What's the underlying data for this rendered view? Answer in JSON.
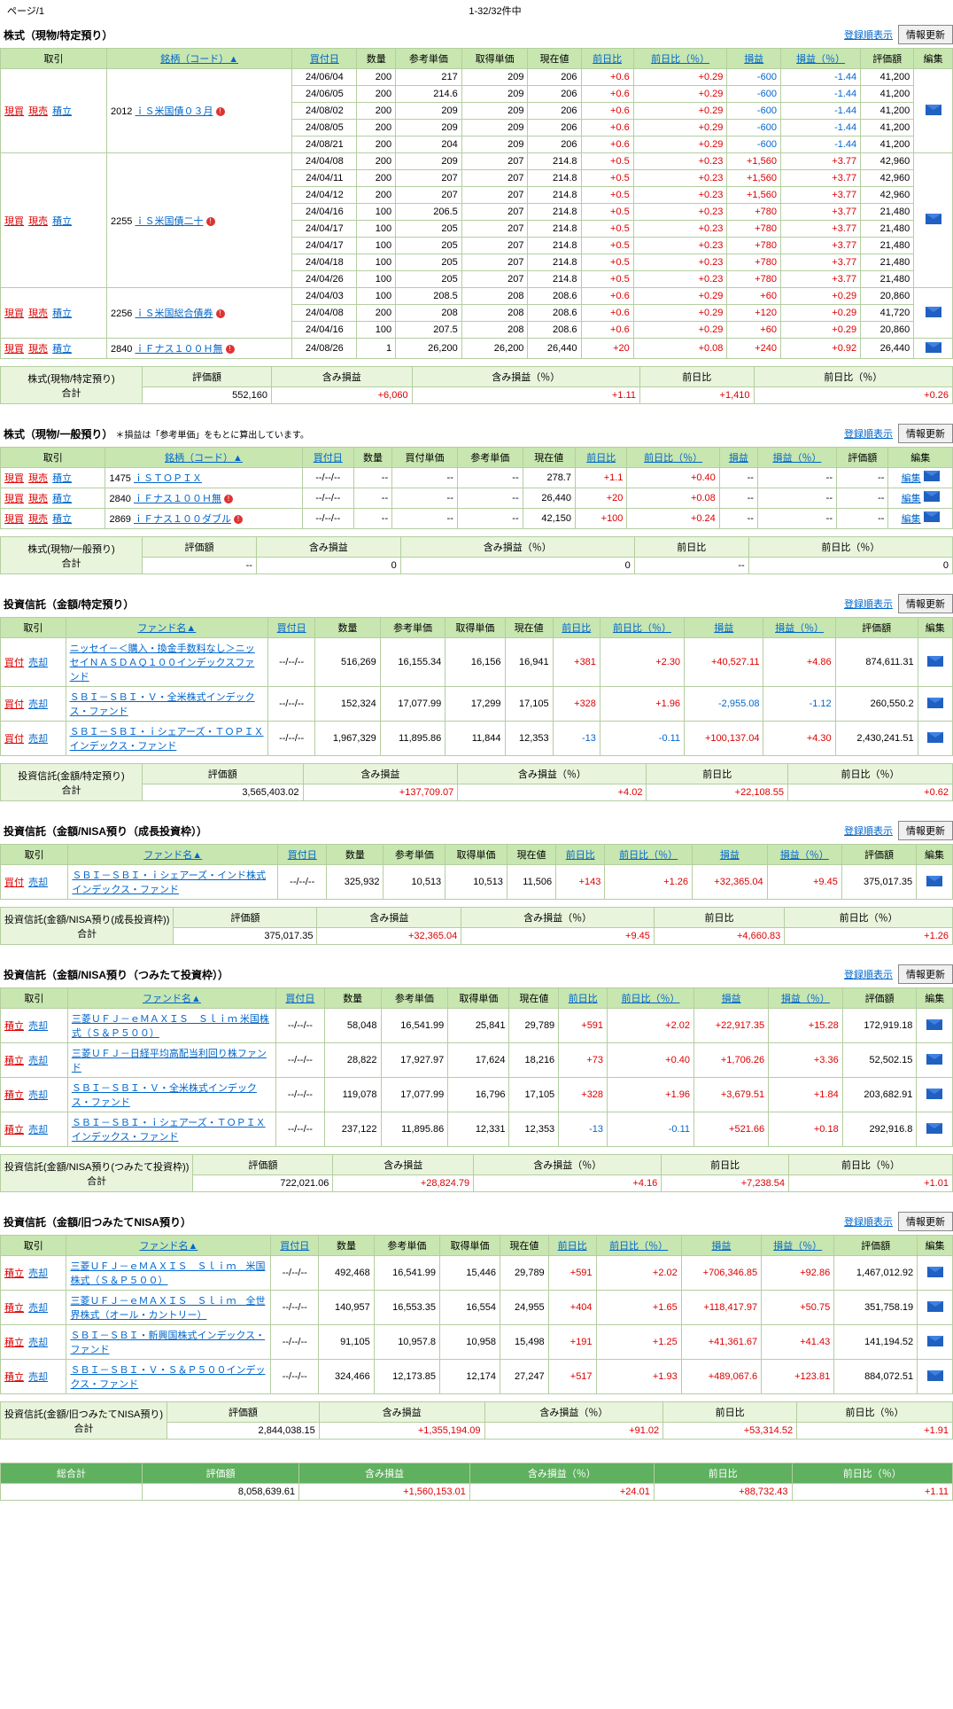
{
  "top": {
    "page_label": "ページ",
    "page_num": "/1",
    "count": "1-32/32件中"
  },
  "common": {
    "reg_order": "登録順表示",
    "info_update": "情報更新",
    "edit": "編集",
    "h_trade": "取引",
    "h_name": "銘柄（コード）▲",
    "h_fund": "ファンド名▲",
    "h_buydate": "買付日",
    "h_qty": "数量",
    "h_refprice": "参考単価",
    "h_buyprice": "買付単価",
    "h_acqprice": "取得単価",
    "h_curval": "現在値",
    "h_prevdiff": "前日比",
    "h_prevpct": "前日比（％）",
    "h_gain": "損益",
    "h_gainpct": "損益（％）",
    "h_eval": "評価額",
    "h_edit": "編集",
    "act_buy": "現買",
    "act_sell": "現売",
    "act_tsumi": "積立",
    "act_kaitsuke": "買付",
    "act_kaitsuke2": "積立",
    "act_baikyaku": "売却",
    "sum_eval": "評価額",
    "sum_gain": "含み損益",
    "sum_gainpct": "含み損益（％）",
    "sum_prev": "前日比",
    "sum_prevpct": "前日比（％）",
    "sum_total": "合計",
    "grand": "総合計"
  },
  "sec1": {
    "title": "株式（現物/特定預り）",
    "groups": [
      {
        "code": "2012",
        "name": "ｉＳ米国債０３月",
        "dot": true,
        "rows": [
          {
            "d": "24/06/04",
            "q": "200",
            "rp": "217",
            "ap": "209",
            "cv": "206",
            "pd": "+0.6",
            "pp": "+0.29",
            "g": "-600",
            "gp": "-1.44",
            "ev": "41,200"
          },
          {
            "d": "24/06/05",
            "q": "200",
            "rp": "214.6",
            "ap": "209",
            "cv": "206",
            "pd": "+0.6",
            "pp": "+0.29",
            "g": "-600",
            "gp": "-1.44",
            "ev": "41,200"
          },
          {
            "d": "24/08/02",
            "q": "200",
            "rp": "209",
            "ap": "209",
            "cv": "206",
            "pd": "+0.6",
            "pp": "+0.29",
            "g": "-600",
            "gp": "-1.44",
            "ev": "41,200"
          },
          {
            "d": "24/08/05",
            "q": "200",
            "rp": "209",
            "ap": "209",
            "cv": "206",
            "pd": "+0.6",
            "pp": "+0.29",
            "g": "-600",
            "gp": "-1.44",
            "ev": "41,200"
          },
          {
            "d": "24/08/21",
            "q": "200",
            "rp": "204",
            "ap": "209",
            "cv": "206",
            "pd": "+0.6",
            "pp": "+0.29",
            "g": "-600",
            "gp": "-1.44",
            "ev": "41,200"
          }
        ]
      },
      {
        "code": "2255",
        "name": "ｉＳ米国債二十",
        "dot": true,
        "rows": [
          {
            "d": "24/04/08",
            "q": "200",
            "rp": "209",
            "ap": "207",
            "cv": "214.8",
            "pd": "+0.5",
            "pp": "+0.23",
            "g": "+1,560",
            "gp": "+3.77",
            "ev": "42,960"
          },
          {
            "d": "24/04/11",
            "q": "200",
            "rp": "207",
            "ap": "207",
            "cv": "214.8",
            "pd": "+0.5",
            "pp": "+0.23",
            "g": "+1,560",
            "gp": "+3.77",
            "ev": "42,960"
          },
          {
            "d": "24/04/12",
            "q": "200",
            "rp": "207",
            "ap": "207",
            "cv": "214.8",
            "pd": "+0.5",
            "pp": "+0.23",
            "g": "+1,560",
            "gp": "+3.77",
            "ev": "42,960"
          },
          {
            "d": "24/04/16",
            "q": "100",
            "rp": "206.5",
            "ap": "207",
            "cv": "214.8",
            "pd": "+0.5",
            "pp": "+0.23",
            "g": "+780",
            "gp": "+3.77",
            "ev": "21,480"
          },
          {
            "d": "24/04/17",
            "q": "100",
            "rp": "205",
            "ap": "207",
            "cv": "214.8",
            "pd": "+0.5",
            "pp": "+0.23",
            "g": "+780",
            "gp": "+3.77",
            "ev": "21,480"
          },
          {
            "d": "24/04/17",
            "q": "100",
            "rp": "205",
            "ap": "207",
            "cv": "214.8",
            "pd": "+0.5",
            "pp": "+0.23",
            "g": "+780",
            "gp": "+3.77",
            "ev": "21,480"
          },
          {
            "d": "24/04/18",
            "q": "100",
            "rp": "205",
            "ap": "207",
            "cv": "214.8",
            "pd": "+0.5",
            "pp": "+0.23",
            "g": "+780",
            "gp": "+3.77",
            "ev": "21,480"
          },
          {
            "d": "24/04/26",
            "q": "100",
            "rp": "205",
            "ap": "207",
            "cv": "214.8",
            "pd": "+0.5",
            "pp": "+0.23",
            "g": "+780",
            "gp": "+3.77",
            "ev": "21,480"
          }
        ]
      },
      {
        "code": "2256",
        "name": "ｉＳ米国総合債券",
        "dot": true,
        "rows": [
          {
            "d": "24/04/03",
            "q": "100",
            "rp": "208.5",
            "ap": "208",
            "cv": "208.6",
            "pd": "+0.6",
            "pp": "+0.29",
            "g": "+60",
            "gp": "+0.29",
            "ev": "20,860"
          },
          {
            "d": "24/04/08",
            "q": "200",
            "rp": "208",
            "ap": "208",
            "cv": "208.6",
            "pd": "+0.6",
            "pp": "+0.29",
            "g": "+120",
            "gp": "+0.29",
            "ev": "41,720"
          },
          {
            "d": "24/04/16",
            "q": "100",
            "rp": "207.5",
            "ap": "208",
            "cv": "208.6",
            "pd": "+0.6",
            "pp": "+0.29",
            "g": "+60",
            "gp": "+0.29",
            "ev": "20,860"
          }
        ]
      },
      {
        "code": "2840",
        "name": "ｉＦナス１００Ｈ無",
        "dot": true,
        "rows": [
          {
            "d": "24/08/26",
            "q": "1",
            "rp": "26,200",
            "ap": "26,200",
            "cv": "26,440",
            "pd": "+20",
            "pp": "+0.08",
            "g": "+240",
            "gp": "+0.92",
            "ev": "26,440"
          }
        ]
      }
    ],
    "sum": {
      "label": "株式(現物/特定預り)",
      "ev": "552,160",
      "g": "+6,060",
      "gp": "+1.11",
      "pd": "+1,410",
      "pp": "+0.26"
    }
  },
  "sec2": {
    "title": "株式（現物/一般預り）",
    "note": "＊損益は「参考単価」をもとに算出しています。",
    "rows": [
      {
        "code": "1475",
        "name": "ｉＳＴＯＰＩＸ",
        "dot": false,
        "d": "--/--/--",
        "q": "--",
        "bp": "--",
        "rp": "--",
        "cv": "278.7",
        "pd": "+1.1",
        "pp": "+0.40",
        "g": "--",
        "gp": "--",
        "ev": "--"
      },
      {
        "code": "2840",
        "name": "ｉＦナス１００Ｈ無",
        "dot": true,
        "d": "--/--/--",
        "q": "--",
        "bp": "--",
        "rp": "--",
        "cv": "26,440",
        "pd": "+20",
        "pp": "+0.08",
        "g": "--",
        "gp": "--",
        "ev": "--"
      },
      {
        "code": "2869",
        "name": "ｉＦナス１００ダブル",
        "dot": true,
        "d": "--/--/--",
        "q": "--",
        "bp": "--",
        "rp": "--",
        "cv": "42,150",
        "pd": "+100",
        "pp": "+0.24",
        "g": "--",
        "gp": "--",
        "ev": "--"
      }
    ],
    "sum": {
      "label": "株式(現物/一般預り)",
      "ev": "--",
      "g": "0",
      "gp": "0",
      "pd": "--",
      "pp": "0"
    }
  },
  "sec3": {
    "title": "投資信託（金額/特定預り）",
    "rows": [
      {
        "name": "ニッセイ－＜購入・換金手数料なし＞ニッセイＮＡＳＤＡＱ１００インデックスファンド",
        "d": "--/--/--",
        "q": "516,269",
        "rp": "16,155.34",
        "ap": "16,156",
        "cv": "16,941",
        "pd": "+381",
        "pp": "+2.30",
        "g": "+40,527.11",
        "gp": "+4.86",
        "ev": "874,611.31"
      },
      {
        "name": "ＳＢＩ－ＳＢＩ・Ｖ・全米株式インデックス・ファンド",
        "d": "--/--/--",
        "q": "152,324",
        "rp": "17,077.99",
        "ap": "17,299",
        "cv": "17,105",
        "pd": "+328",
        "pp": "+1.96",
        "g": "-2,955.08",
        "gp": "-1.12",
        "ev": "260,550.2"
      },
      {
        "name": "ＳＢＩ－ＳＢＩ・ｉシェアーズ・ＴＯＰＩＸインデックス・ファンド",
        "d": "--/--/--",
        "q": "1,967,329",
        "rp": "11,895.86",
        "ap": "11,844",
        "cv": "12,353",
        "pd": "-13",
        "pp": "-0.11",
        "g": "+100,137.04",
        "gp": "+4.30",
        "ev": "2,430,241.51"
      }
    ],
    "sum": {
      "label": "投資信託(金額/特定預り)",
      "ev": "3,565,403.02",
      "g": "+137,709.07",
      "gp": "+4.02",
      "pd": "+22,108.55",
      "pp": "+0.62"
    }
  },
  "sec4": {
    "title": "投資信託（金額/NISA預り（成長投資枠））",
    "rows": [
      {
        "name": "ＳＢＩ－ＳＢＩ・ｉシェアーズ・インド株式インデックス・ファンド",
        "d": "--/--/--",
        "q": "325,932",
        "rp": "10,513",
        "ap": "10,513",
        "cv": "11,506",
        "pd": "+143",
        "pp": "+1.26",
        "g": "+32,365.04",
        "gp": "+9.45",
        "ev": "375,017.35"
      }
    ],
    "sum": {
      "label": "投資信託(金額/NISA預り(成長投資枠))",
      "ev": "375,017.35",
      "g": "+32,365.04",
      "gp": "+9.45",
      "pd": "+4,660.83",
      "pp": "+1.26"
    }
  },
  "sec5": {
    "title": "投資信託（金額/NISA預り（つみたて投資枠））",
    "rows": [
      {
        "name": "三菱ＵＦＪ－ｅＭＡＸＩＳ　Ｓｌｉｍ 米国株式（Ｓ＆Ｐ５００）",
        "d": "--/--/--",
        "q": "58,048",
        "rp": "16,541.99",
        "ap": "25,841",
        "cv": "29,789",
        "pd": "+591",
        "pp": "+2.02",
        "g": "+22,917.35",
        "gp": "+15.28",
        "ev": "172,919.18"
      },
      {
        "name": "三菱ＵＦＪ－日経平均高配当利回り株ファンド",
        "d": "--/--/--",
        "q": "28,822",
        "rp": "17,927.97",
        "ap": "17,624",
        "cv": "18,216",
        "pd": "+73",
        "pp": "+0.40",
        "g": "+1,706.26",
        "gp": "+3.36",
        "ev": "52,502.15"
      },
      {
        "name": "ＳＢＩ－ＳＢＩ・Ｖ・全米株式インデックス・ファンド",
        "d": "--/--/--",
        "q": "119,078",
        "rp": "17,077.99",
        "ap": "16,796",
        "cv": "17,105",
        "pd": "+328",
        "pp": "+1.96",
        "g": "+3,679.51",
        "gp": "+1.84",
        "ev": "203,682.91"
      },
      {
        "name": "ＳＢＩ－ＳＢＩ・ｉシェアーズ・ＴＯＰＩＸインデックス・ファンド",
        "d": "--/--/--",
        "q": "237,122",
        "rp": "11,895.86",
        "ap": "12,331",
        "cv": "12,353",
        "pd": "-13",
        "pp": "-0.11",
        "g": "+521.66",
        "gp": "+0.18",
        "ev": "292,916.8"
      }
    ],
    "sum": {
      "label": "投資信託(金額/NISA預り(つみたて投資枠))",
      "ev": "722,021.06",
      "g": "+28,824.79",
      "gp": "+4.16",
      "pd": "+7,238.54",
      "pp": "+1.01"
    }
  },
  "sec6": {
    "title": "投資信託（金額/旧つみたてNISA預り）",
    "rows": [
      {
        "name": "三菱ＵＦＪ－ｅＭＡＸＩＳ　Ｓｌｉｍ　米国株式（Ｓ＆Ｐ５００）",
        "d": "--/--/--",
        "q": "492,468",
        "rp": "16,541.99",
        "ap": "15,446",
        "cv": "29,789",
        "pd": "+591",
        "pp": "+2.02",
        "g": "+706,346.85",
        "gp": "+92.86",
        "ev": "1,467,012.92"
      },
      {
        "name": "三菱ＵＦＪ－ｅＭＡＸＩＳ　Ｓｌｉｍ　全世界株式（オール・カントリー）",
        "d": "--/--/--",
        "q": "140,957",
        "rp": "16,553.35",
        "ap": "16,554",
        "cv": "24,955",
        "pd": "+404",
        "pp": "+1.65",
        "g": "+118,417.97",
        "gp": "+50.75",
        "ev": "351,758.19"
      },
      {
        "name": "ＳＢＩ－ＳＢＩ・新興国株式インデックス・ファンド",
        "d": "--/--/--",
        "q": "91,105",
        "rp": "10,957.8",
        "ap": "10,958",
        "cv": "15,498",
        "pd": "+191",
        "pp": "+1.25",
        "g": "+41,361.67",
        "gp": "+41.43",
        "ev": "141,194.52"
      },
      {
        "name": "ＳＢＩ－ＳＢＩ・Ｖ・Ｓ＆Ｐ５００インデックス・ファンド",
        "d": "--/--/--",
        "q": "324,466",
        "rp": "12,173.85",
        "ap": "12,174",
        "cv": "27,247",
        "pd": "+517",
        "pp": "+1.93",
        "g": "+489,067.6",
        "gp": "+123.81",
        "ev": "884,072.51"
      }
    ],
    "sum": {
      "label": "投資信託(金額/旧つみたてNISA預り)",
      "ev": "2,844,038.15",
      "g": "+1,355,194.09",
      "gp": "+91.02",
      "pd": "+53,314.52",
      "pp": "+1.91"
    }
  },
  "grand": {
    "ev": "8,058,639.61",
    "g": "+1,560,153.01",
    "gp": "+24.01",
    "pd": "+88,732.43",
    "pp": "+1.11"
  }
}
